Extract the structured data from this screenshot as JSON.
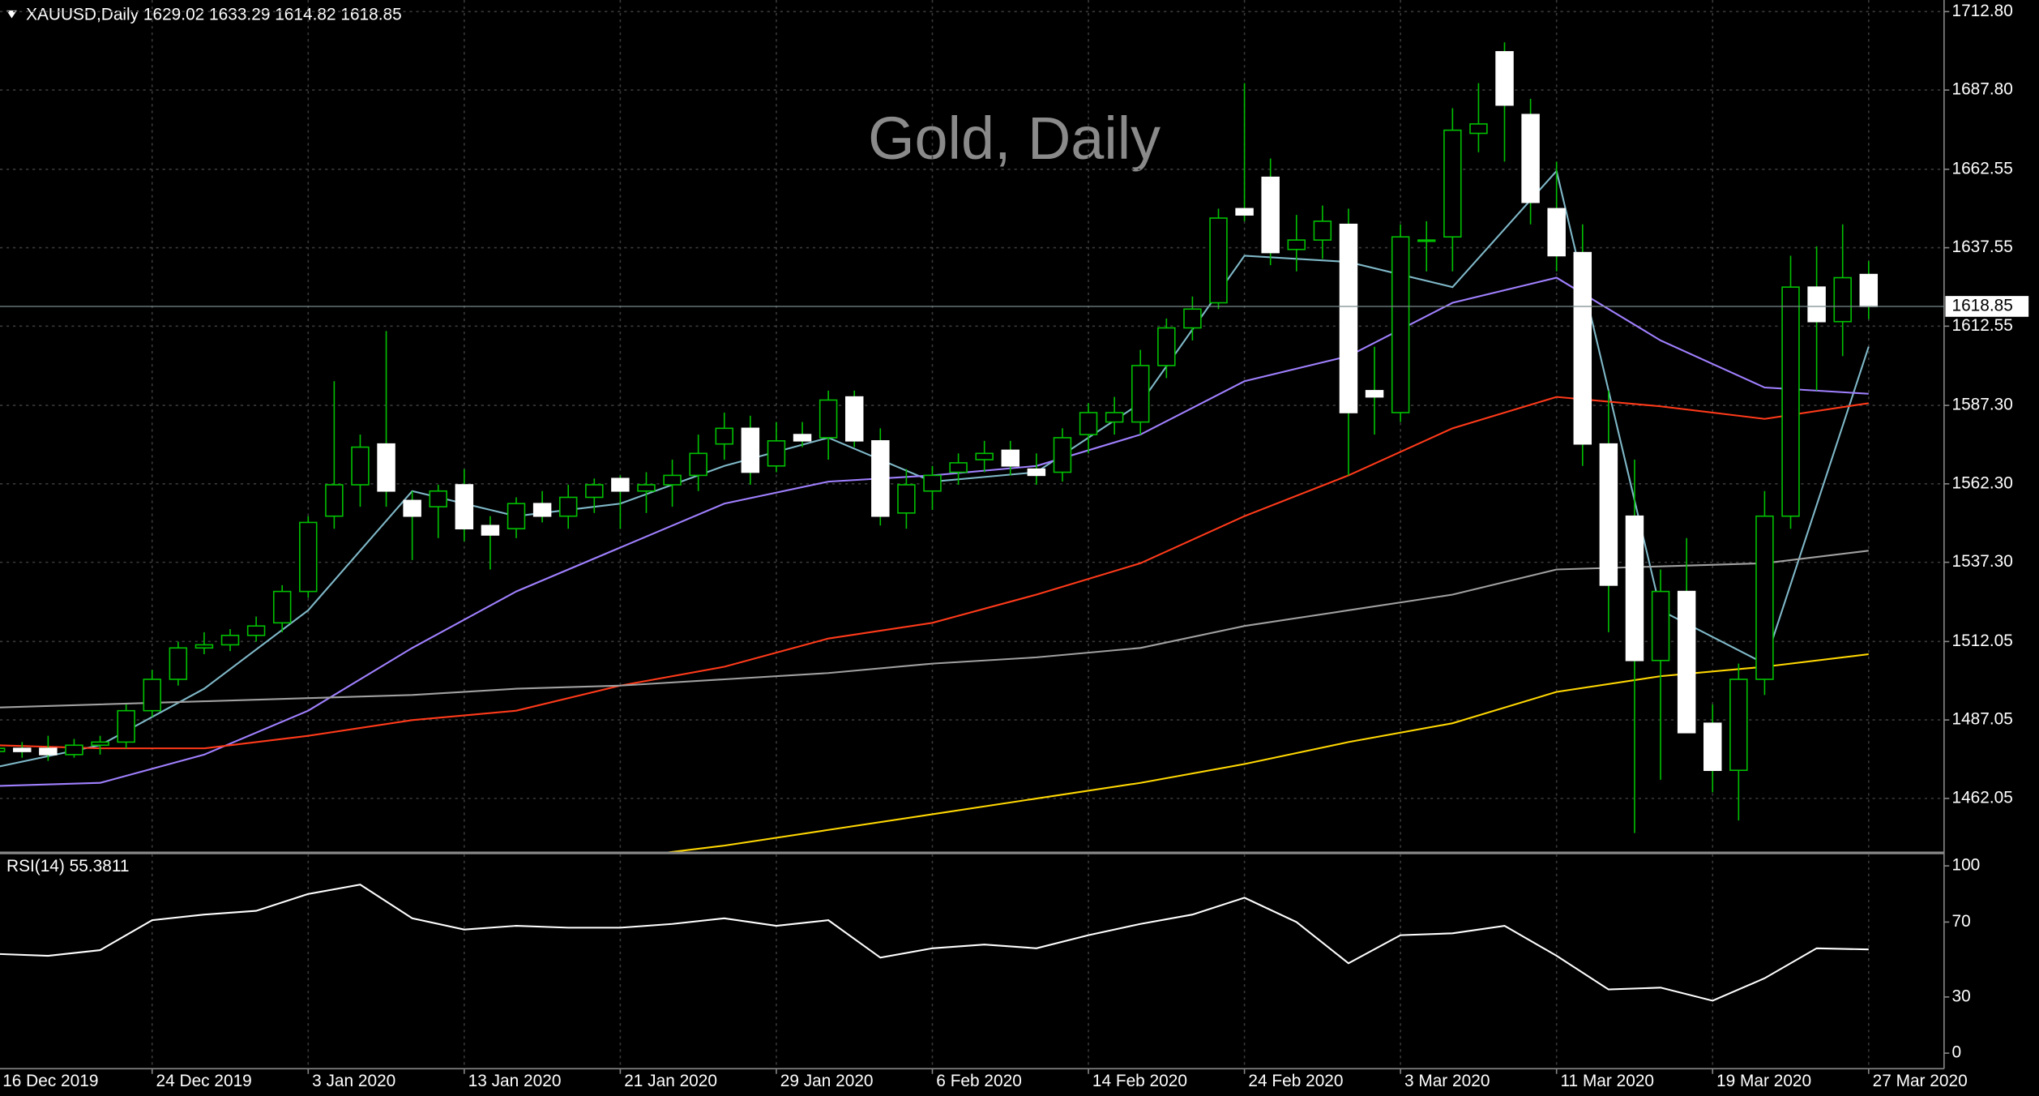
{
  "chart_data": [
    {
      "type": "candlestick",
      "title": "XAUUSD,Daily  1629.02 1633.29 1614.82 1618.85",
      "watermark": "Gold, Daily",
      "categories": [
        "16 Dec 2019",
        null,
        null,
        null,
        null,
        null,
        "24 Dec 2019",
        null,
        null,
        null,
        null,
        null,
        "3 Jan 2020",
        null,
        null,
        null,
        null,
        null,
        "13 Jan 2020",
        null,
        null,
        null,
        null,
        null,
        "21 Jan 2020",
        null,
        null,
        null,
        null,
        null,
        "29 Jan 2020",
        null,
        null,
        null,
        null,
        null,
        "6 Feb 2020",
        null,
        null,
        null,
        null,
        null,
        "14 Feb 2020",
        null,
        null,
        null,
        null,
        null,
        "24 Feb 2020",
        null,
        null,
        null,
        null,
        null,
        "3 Mar 2020",
        null,
        null,
        null,
        null,
        null,
        "11 Mar 2020",
        null,
        null,
        null,
        null,
        null,
        "19 Mar 2020",
        null,
        null,
        null,
        null,
        null,
        "27 Mar 2020"
      ],
      "open": [
        1477,
        1478,
        1478,
        1476,
        1479,
        1480,
        1490,
        1500,
        1510,
        1511,
        1514,
        1518,
        1528,
        1552,
        1562,
        1575,
        1557,
        1555,
        1562,
        1549,
        1548,
        1556,
        1552,
        1558,
        1564,
        1560,
        1562,
        1565,
        1575,
        1580,
        1568,
        1578,
        1577,
        1590,
        1576,
        1553,
        1560,
        1566,
        1570,
        1573,
        1567,
        1566,
        1578,
        1582,
        1582,
        1600,
        1612,
        1620,
        1650,
        1660,
        1637,
        1640,
        1645,
        1592,
        1585,
        1640,
        1641,
        1674,
        1700,
        1680,
        1650,
        1636,
        1575,
        1552,
        1506,
        1528,
        1486,
        1471,
        1500,
        1552,
        1625,
        1614,
        1629.02
      ],
      "high": [
        1481,
        1480,
        1482,
        1481,
        1482,
        1492,
        1503,
        1512,
        1515,
        1516,
        1520,
        1530,
        1552,
        1595,
        1578,
        1611,
        1560,
        1562,
        1567,
        1552,
        1558,
        1560,
        1562,
        1564,
        1565,
        1566,
        1570,
        1578,
        1585,
        1584,
        1582,
        1582,
        1592,
        1592,
        1580,
        1567,
        1568,
        1572,
        1576,
        1576,
        1572,
        1580,
        1588,
        1590,
        1605,
        1615,
        1622,
        1650,
        1690,
        1666,
        1648,
        1651,
        1650,
        1606,
        1645,
        1646,
        1682,
        1690,
        1703,
        1685,
        1665,
        1645,
        1592,
        1570,
        1535,
        1545,
        1492,
        1505,
        1560,
        1635,
        1638,
        1645,
        1633.29
      ],
      "low": [
        1475,
        1475,
        1474,
        1475,
        1476,
        1478,
        1488,
        1498,
        1508,
        1509,
        1512,
        1515,
        1526,
        1548,
        1555,
        1555,
        1538,
        1545,
        1544,
        1535,
        1545,
        1550,
        1548,
        1553,
        1548,
        1553,
        1555,
        1560,
        1570,
        1562,
        1566,
        1574,
        1570,
        1574,
        1549,
        1548,
        1554,
        1562,
        1566,
        1565,
        1562,
        1563,
        1572,
        1578,
        1578,
        1596,
        1608,
        1618,
        1646,
        1632,
        1630,
        1634,
        1565,
        1578,
        1582,
        1630,
        1630,
        1668,
        1665,
        1645,
        1630,
        1568,
        1515,
        1451,
        1468,
        1485,
        1464,
        1455,
        1495,
        1548,
        1592,
        1603,
        1614.82
      ],
      "close": [
        1478,
        1477,
        1476,
        1479,
        1480,
        1490,
        1500,
        1510,
        1511,
        1514,
        1517,
        1528,
        1550,
        1562,
        1574,
        1560,
        1552,
        1560,
        1548,
        1546,
        1556,
        1552,
        1558,
        1562,
        1560,
        1562,
        1565,
        1572,
        1580,
        1566,
        1576,
        1576,
        1589,
        1576,
        1552,
        1562,
        1565,
        1569,
        1572,
        1568,
        1565,
        1577,
        1585,
        1585,
        1600,
        1612,
        1618,
        1647,
        1648,
        1636,
        1640,
        1646,
        1585,
        1590,
        1641,
        1640,
        1675,
        1677,
        1683,
        1652,
        1635,
        1575,
        1530,
        1506,
        1528,
        1483,
        1471,
        1500,
        1552,
        1625,
        1614,
        1628,
        1618.85
      ],
      "bull_color": "#00c000",
      "bear_color": "#ffffff",
      "lines": [
        {
          "color": "#7fb8c8",
          "x": [
            0,
            4,
            8,
            12,
            16,
            20,
            24,
            28,
            32,
            36,
            40,
            44,
            48,
            52,
            56,
            60,
            64,
            68,
            72
          ],
          "values": [
            1472,
            1479,
            1497,
            1522,
            1560,
            1552,
            1556,
            1568,
            1577,
            1563,
            1566,
            1588,
            1635,
            1633,
            1625,
            1662,
            1522,
            1505,
            1606
          ]
        },
        {
          "color": "#a080ff",
          "x": [
            0,
            4,
            8,
            12,
            16,
            20,
            24,
            28,
            32,
            36,
            40,
            44,
            48,
            52,
            56,
            60,
            64,
            68,
            72
          ],
          "values": [
            1466,
            1467,
            1476,
            1490,
            1510,
            1528,
            1542,
            1556,
            1563,
            1565,
            1568,
            1578,
            1595,
            1603,
            1620,
            1628,
            1608,
            1593,
            1591
          ]
        },
        {
          "color": "#ff3a1a",
          "x": [
            0,
            4,
            8,
            12,
            16,
            20,
            24,
            28,
            32,
            36,
            40,
            44,
            48,
            52,
            56,
            60,
            64,
            68,
            72
          ],
          "values": [
            1479,
            1478,
            1478,
            1482,
            1487,
            1490,
            1498,
            1504,
            1513,
            1518,
            1527,
            1537,
            1552,
            1565,
            1580,
            1590,
            1587,
            1583,
            1588
          ]
        },
        {
          "color": "#a0a0a0",
          "x": [
            0,
            4,
            8,
            12,
            16,
            20,
            24,
            28,
            32,
            36,
            40,
            44,
            48,
            52,
            56,
            60,
            64,
            68,
            72
          ],
          "values": [
            1491,
            1492,
            1493,
            1494,
            1495,
            1497,
            1498,
            1500,
            1502,
            1505,
            1507,
            1510,
            1517,
            1522,
            1527,
            1535,
            1536,
            1537,
            1541
          ]
        },
        {
          "color": "#ffd700",
          "x": [
            24,
            28,
            32,
            36,
            40,
            44,
            48,
            52,
            56,
            60,
            64,
            68,
            72
          ],
          "values": [
            1443,
            1447,
            1452,
            1457,
            1462,
            1467,
            1473,
            1480,
            1486,
            1496,
            1501,
            1504,
            1508
          ]
        }
      ],
      "current_price": 1618.85,
      "ylim": [
        1445.1,
        1716.5
      ],
      "yticks": [
        {
          "value": 1712.8,
          "label": "1712.80"
        },
        {
          "value": 1687.8,
          "label": "1687.80"
        },
        1662.55,
        1637.55,
        1612.55,
        {
          "value": 1587.3,
          "label": "1587.30"
        },
        {
          "value": 1562.3,
          "label": "1562.30"
        },
        {
          "value": 1537.3,
          "label": "1537.30"
        },
        1512.05,
        1487.05,
        1462.05
      ],
      "grid": true
    },
    {
      "type": "line",
      "title": "RSI(14) 55.3811",
      "x": [
        0,
        2,
        4,
        6,
        8,
        10,
        12,
        14,
        16,
        18,
        20,
        22,
        24,
        26,
        28,
        30,
        32,
        34,
        36,
        38,
        40,
        42,
        44,
        46,
        48,
        50,
        52,
        54,
        56,
        58,
        60,
        62,
        64,
        66,
        68,
        70,
        72
      ],
      "values": [
        53,
        52,
        55,
        71,
        74,
        76,
        85,
        90,
        72,
        66,
        68,
        67,
        67,
        69,
        72,
        68,
        71,
        51,
        56,
        58,
        56,
        63,
        69,
        74,
        83,
        70,
        48,
        63,
        64,
        68,
        52,
        34,
        35,
        28,
        40,
        56,
        55.3811
      ],
      "color": "#ffffff",
      "ylim": [
        -8.3,
        106.25
      ],
      "yticks": [
        100,
        70,
        30,
        0
      ]
    }
  ]
}
